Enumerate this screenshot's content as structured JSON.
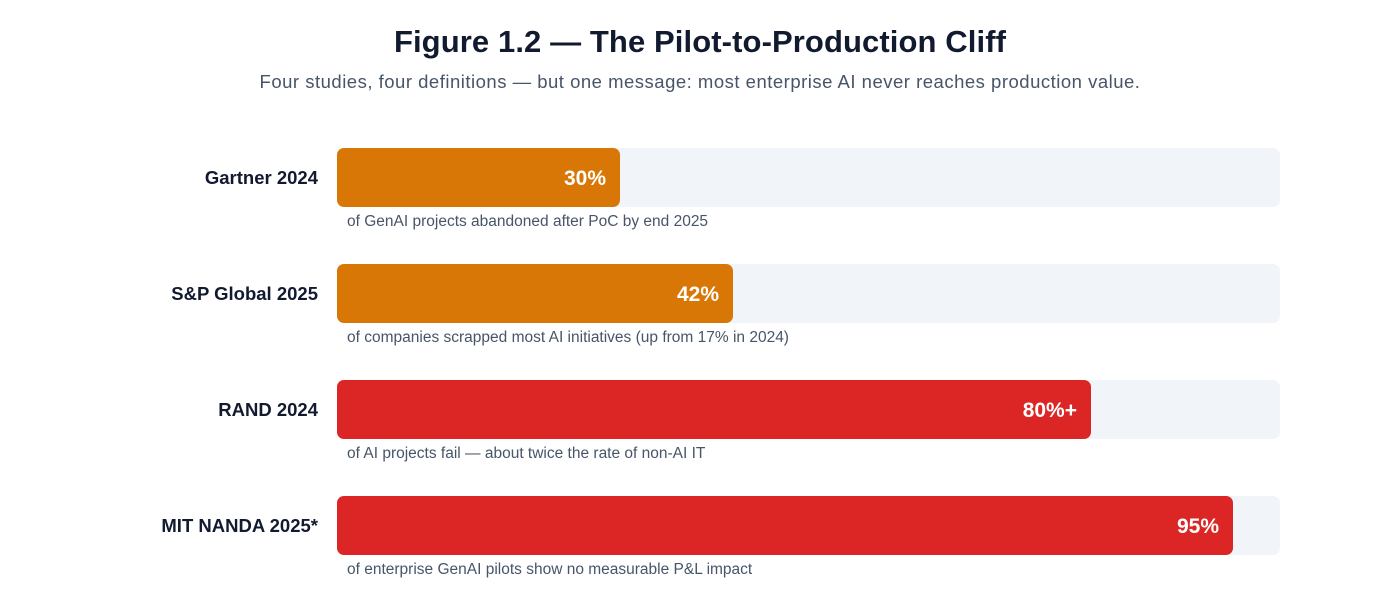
{
  "figure": {
    "title": "Figure 1.2 — The Pilot-to-Production Cliff",
    "subtitle": "Four studies, four definitions — but one message: most enterprise AI never reaches production value."
  },
  "colors": {
    "moderate": "#d97706",
    "severe": "#dc2626",
    "track": "#f1f5f9"
  },
  "chart_data": {
    "type": "bar",
    "orientation": "horizontal",
    "title": "Figure 1.2 — The Pilot-to-Production Cliff",
    "subtitle": "Four studies, four definitions — but one message: most enterprise AI never reaches production value.",
    "xlim": [
      0,
      100
    ],
    "grid": false,
    "categories": [
      "Gartner 2024",
      "S&P Global 2025",
      "RAND 2024",
      "MIT NANDA 2025*"
    ],
    "values": [
      30,
      42,
      80,
      95
    ],
    "value_labels": [
      "30%",
      "42%",
      "80%+",
      "95%"
    ],
    "captions": [
      "of GenAI projects abandoned after PoC by end 2025",
      "of companies scrapped most AI initiatives (up from 17% in 2024)",
      "of AI projects fail — about twice the rate of non-AI IT",
      "of enterprise GenAI pilots show no measurable P&L impact"
    ],
    "bar_colors": [
      "#d97706",
      "#d97706",
      "#dc2626",
      "#dc2626"
    ]
  }
}
